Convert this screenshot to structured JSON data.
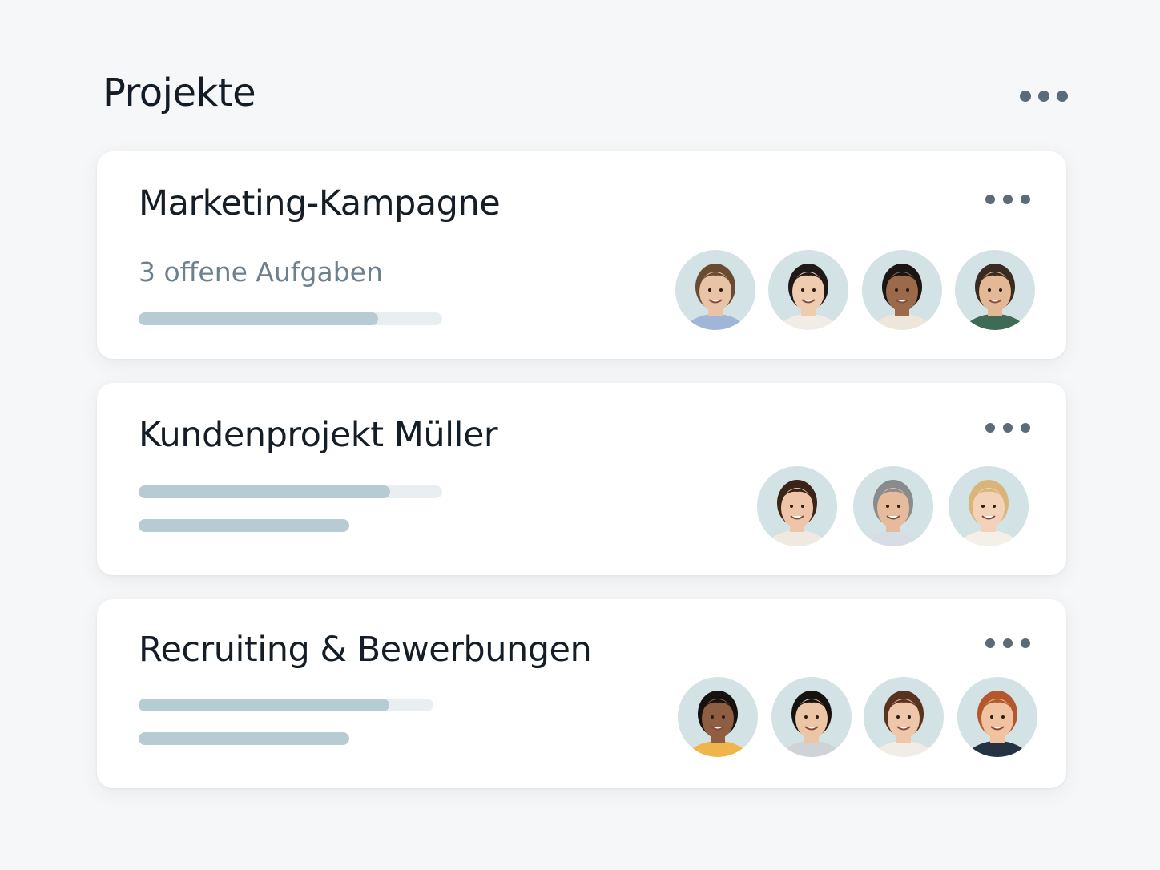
{
  "header": {
    "title": "Projekte"
  },
  "projects": [
    {
      "name": "Marketing-Kampagne",
      "subtitle": "3 offene Aufgaben"
    },
    {
      "name": "Kundenprojekt Müller"
    },
    {
      "name": "Recruiting & Bewerbungen"
    }
  ]
}
